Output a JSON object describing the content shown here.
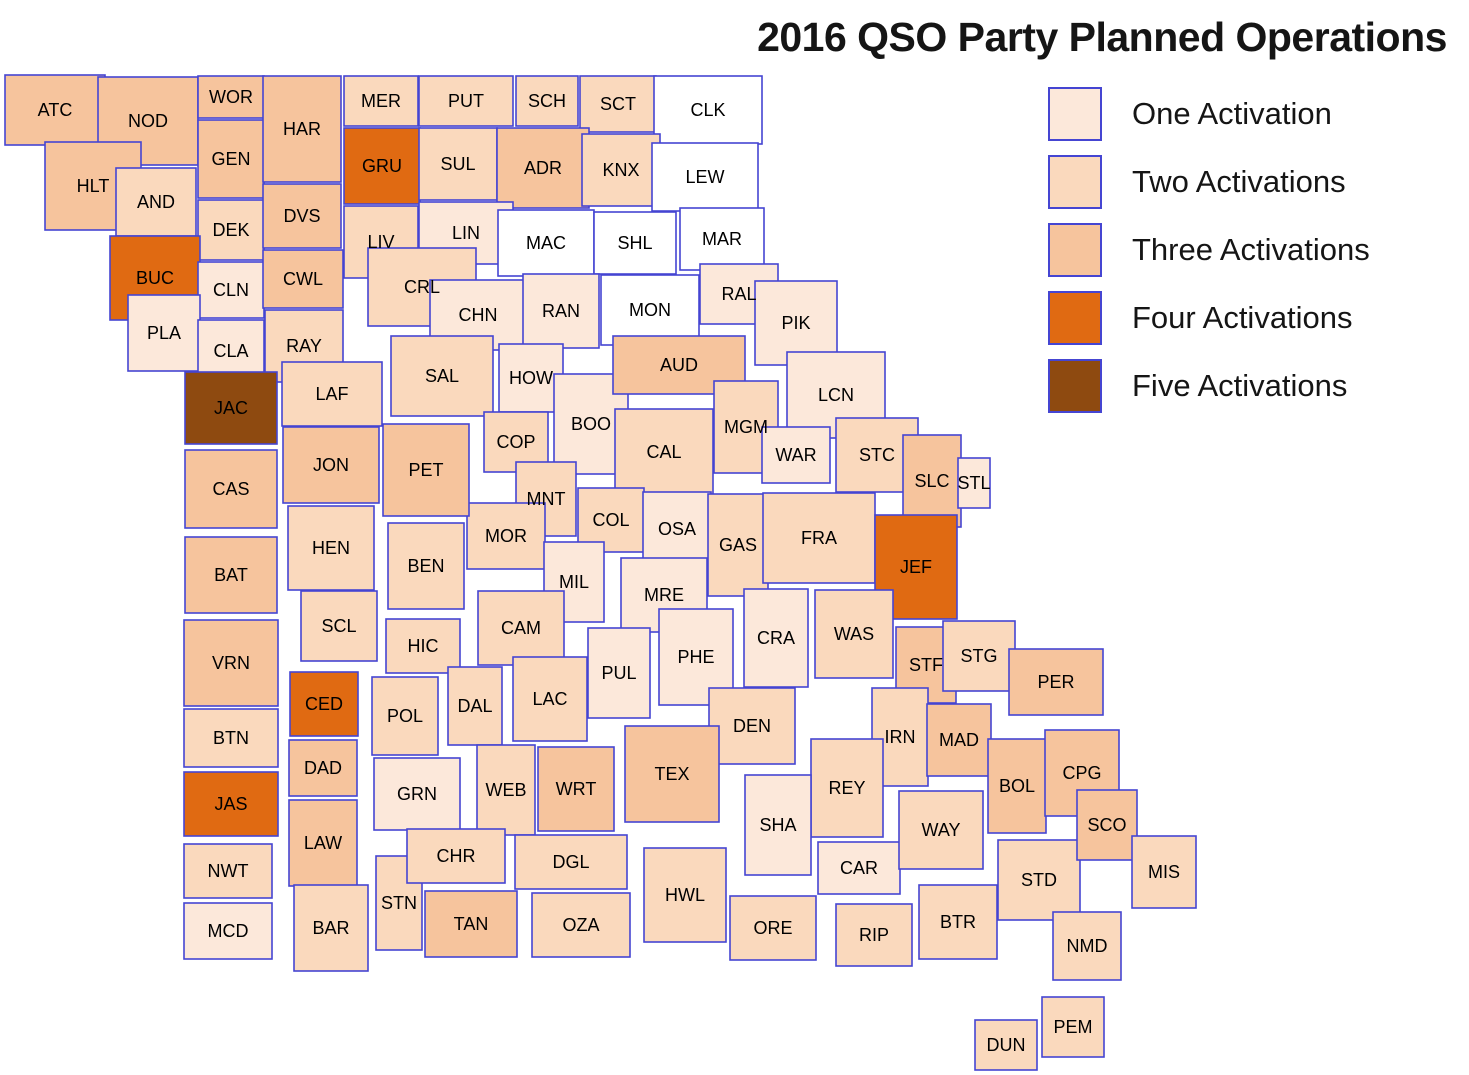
{
  "header": {
    "title": "2016 QSO Party Planned Operations"
  },
  "legend": {
    "items": [
      {
        "label": "One Activation",
        "level": 1,
        "color": "#fce8da"
      },
      {
        "label": "Two Activations",
        "level": 2,
        "color": "#fad9bd"
      },
      {
        "label": "Three Activations",
        "level": 3,
        "color": "#f6c49d"
      },
      {
        "label": "Four Activations",
        "level": 4,
        "color": "#e06a12"
      },
      {
        "label": "Five Activations",
        "level": 5,
        "color": "#8e4a10"
      }
    ]
  },
  "map": {
    "region": "Missouri counties",
    "border_color": "#4545d2",
    "zero_color": "#ffffff",
    "label_color": "#000000",
    "counties_format": [
      "code",
      "activation_level_0_to_5",
      "x",
      "y",
      "w",
      "h"
    ],
    "counties": [
      [
        "ATC",
        3,
        5,
        75,
        100,
        70
      ],
      [
        "NOD",
        3,
        98,
        77,
        100,
        88
      ],
      [
        "WOR",
        3,
        198,
        76,
        66,
        42
      ],
      [
        "GEN",
        3,
        198,
        120,
        66,
        78
      ],
      [
        "HAR",
        3,
        263,
        76,
        78,
        106
      ],
      [
        "MER",
        2,
        344,
        76,
        74,
        50
      ],
      [
        "PUT",
        2,
        419,
        76,
        94,
        50
      ],
      [
        "SCH",
        2,
        516,
        76,
        62,
        50
      ],
      [
        "SCT",
        2,
        580,
        76,
        76,
        56
      ],
      [
        "CLK",
        0,
        654,
        76,
        108,
        68
      ],
      [
        "HLT",
        3,
        45,
        142,
        96,
        88
      ],
      [
        "AND",
        2,
        116,
        168,
        80,
        68
      ],
      [
        "DEK",
        2,
        198,
        200,
        66,
        60
      ],
      [
        "GRU",
        4,
        344,
        128,
        76,
        76
      ],
      [
        "SUL",
        2,
        419,
        128,
        78,
        72
      ],
      [
        "ADR",
        3,
        497,
        128,
        92,
        80
      ],
      [
        "KNX",
        2,
        582,
        134,
        78,
        72
      ],
      [
        "LEW",
        0,
        652,
        143,
        106,
        68
      ],
      [
        "DVS",
        3,
        263,
        184,
        78,
        64
      ],
      [
        "LIV",
        2,
        344,
        206,
        74,
        72
      ],
      [
        "LIN",
        1,
        419,
        202,
        94,
        62
      ],
      [
        "MAC",
        0,
        498,
        210,
        96,
        66
      ],
      [
        "SHL",
        0,
        594,
        212,
        82,
        62
      ],
      [
        "MAR",
        0,
        680,
        208,
        84,
        62
      ],
      [
        "BUC",
        4,
        110,
        236,
        90,
        84
      ],
      [
        "CLN",
        1,
        198,
        262,
        66,
        56
      ],
      [
        "CWL",
        3,
        263,
        250,
        80,
        58
      ],
      [
        "PLA",
        1,
        128,
        295,
        72,
        76
      ],
      [
        "CLA",
        1,
        198,
        320,
        66,
        62
      ],
      [
        "RAY",
        2,
        265,
        310,
        78,
        72
      ],
      [
        "CRL",
        2,
        368,
        248,
        108,
        78
      ],
      [
        "CHN",
        1,
        430,
        280,
        96,
        70
      ],
      [
        "RAN",
        1,
        523,
        274,
        76,
        74
      ],
      [
        "MON",
        0,
        601,
        275,
        98,
        70
      ],
      [
        "RAL",
        1,
        700,
        264,
        78,
        60
      ],
      [
        "PIK",
        1,
        755,
        281,
        82,
        84
      ],
      [
        "JAC",
        5,
        185,
        372,
        92,
        72
      ],
      [
        "LAF",
        2,
        282,
        362,
        100,
        64
      ],
      [
        "SAL",
        2,
        391,
        336,
        102,
        80
      ],
      [
        "HOW",
        1,
        499,
        344,
        64,
        68
      ],
      [
        "BOO",
        1,
        554,
        374,
        74,
        100
      ],
      [
        "AUD",
        3,
        613,
        336,
        132,
        58
      ],
      [
        "LCN",
        1,
        787,
        352,
        98,
        86
      ],
      [
        "MGM",
        2,
        714,
        381,
        64,
        92
      ],
      [
        "WAR",
        1,
        762,
        427,
        68,
        56
      ],
      [
        "STC",
        2,
        836,
        418,
        82,
        74
      ],
      [
        "SLC",
        3,
        903,
        435,
        58,
        92
      ],
      [
        "STL",
        1,
        958,
        458,
        32,
        50
      ],
      [
        "CAL",
        2,
        615,
        409,
        98,
        86
      ],
      [
        "COP",
        2,
        484,
        412,
        64,
        60
      ],
      [
        "MNT",
        2,
        516,
        462,
        60,
        74
      ],
      [
        "COL",
        2,
        578,
        488,
        66,
        64
      ],
      [
        "OSA",
        1,
        643,
        492,
        68,
        74
      ],
      [
        "GAS",
        2,
        708,
        494,
        60,
        102
      ],
      [
        "FRA",
        2,
        763,
        493,
        112,
        90
      ],
      [
        "JEF",
        4,
        875,
        515,
        82,
        104
      ],
      [
        "MOR",
        2,
        467,
        503,
        78,
        66
      ],
      [
        "BEN",
        2,
        388,
        523,
        76,
        86
      ],
      [
        "HEN",
        2,
        288,
        506,
        86,
        84
      ],
      [
        "BAT",
        3,
        185,
        537,
        92,
        76
      ],
      [
        "CAS",
        3,
        185,
        450,
        92,
        78
      ],
      [
        "JON",
        3,
        283,
        427,
        96,
        76
      ],
      [
        "PET",
        3,
        383,
        424,
        86,
        92
      ],
      [
        "MIL",
        1,
        544,
        542,
        60,
        80
      ],
      [
        "MRE",
        1,
        621,
        558,
        86,
        74
      ],
      [
        "SCL",
        2,
        301,
        591,
        76,
        70
      ],
      [
        "VRN",
        3,
        184,
        620,
        94,
        86
      ],
      [
        "HIC",
        2,
        386,
        619,
        74,
        54
      ],
      [
        "CAM",
        2,
        478,
        591,
        86,
        74
      ],
      [
        "PUL",
        1,
        588,
        628,
        62,
        90
      ],
      [
        "PHE",
        1,
        659,
        609,
        74,
        96
      ],
      [
        "CRA",
        1,
        744,
        589,
        64,
        98
      ],
      [
        "WAS",
        2,
        815,
        590,
        78,
        88
      ],
      [
        "STF",
        3,
        896,
        627,
        60,
        76
      ],
      [
        "STG",
        2,
        943,
        621,
        72,
        70
      ],
      [
        "PER",
        3,
        1009,
        649,
        94,
        66
      ],
      [
        "BTN",
        2,
        184,
        709,
        94,
        58
      ],
      [
        "CED",
        4,
        290,
        672,
        68,
        64
      ],
      [
        "POL",
        2,
        372,
        677,
        66,
        78
      ],
      [
        "DAL",
        2,
        448,
        667,
        54,
        78
      ],
      [
        "LAC",
        2,
        513,
        657,
        74,
        84
      ],
      [
        "DEN",
        2,
        709,
        688,
        86,
        76
      ],
      [
        "IRN",
        2,
        872,
        688,
        56,
        98
      ],
      [
        "MAD",
        3,
        927,
        704,
        64,
        72
      ],
      [
        "BOL",
        3,
        988,
        739,
        58,
        94
      ],
      [
        "CPG",
        3,
        1045,
        730,
        74,
        86
      ],
      [
        "JAS",
        4,
        184,
        772,
        94,
        64
      ],
      [
        "DAD",
        3,
        289,
        740,
        68,
        56
      ],
      [
        "LAW",
        3,
        289,
        800,
        68,
        86
      ],
      [
        "GRN",
        1,
        374,
        758,
        86,
        72
      ],
      [
        "WEB",
        2,
        477,
        745,
        58,
        90
      ],
      [
        "WRT",
        3,
        538,
        747,
        76,
        84
      ],
      [
        "TEX",
        3,
        625,
        726,
        94,
        96
      ],
      [
        "REY",
        2,
        811,
        739,
        72,
        98
      ],
      [
        "SHA",
        1,
        745,
        775,
        66,
        100
      ],
      [
        "NWT",
        2,
        184,
        844,
        88,
        54
      ],
      [
        "MCD",
        1,
        184,
        903,
        88,
        56
      ],
      [
        "BAR",
        2,
        294,
        885,
        74,
        86
      ],
      [
        "STN",
        2,
        376,
        856,
        46,
        94
      ],
      [
        "CHR",
        2,
        407,
        829,
        98,
        54
      ],
      [
        "TAN",
        3,
        425,
        891,
        92,
        66
      ],
      [
        "DGL",
        2,
        515,
        835,
        112,
        54
      ],
      [
        "OZA",
        2,
        532,
        893,
        98,
        64
      ],
      [
        "HWL",
        2,
        644,
        848,
        82,
        94
      ],
      [
        "ORE",
        2,
        730,
        896,
        86,
        64
      ],
      [
        "CAR",
        1,
        818,
        842,
        82,
        52
      ],
      [
        "RIP",
        2,
        836,
        904,
        76,
        62
      ],
      [
        "WAY",
        2,
        899,
        791,
        84,
        78
      ],
      [
        "BTR",
        2,
        919,
        885,
        78,
        74
      ],
      [
        "STD",
        2,
        998,
        840,
        82,
        80
      ],
      [
        "SCO",
        3,
        1077,
        790,
        60,
        70
      ],
      [
        "MIS",
        2,
        1132,
        836,
        64,
        72
      ],
      [
        "NMD",
        2,
        1053,
        912,
        68,
        68
      ],
      [
        "PEM",
        2,
        1042,
        997,
        62,
        60
      ],
      [
        "DUN",
        2,
        975,
        1020,
        62,
        50
      ]
    ]
  }
}
